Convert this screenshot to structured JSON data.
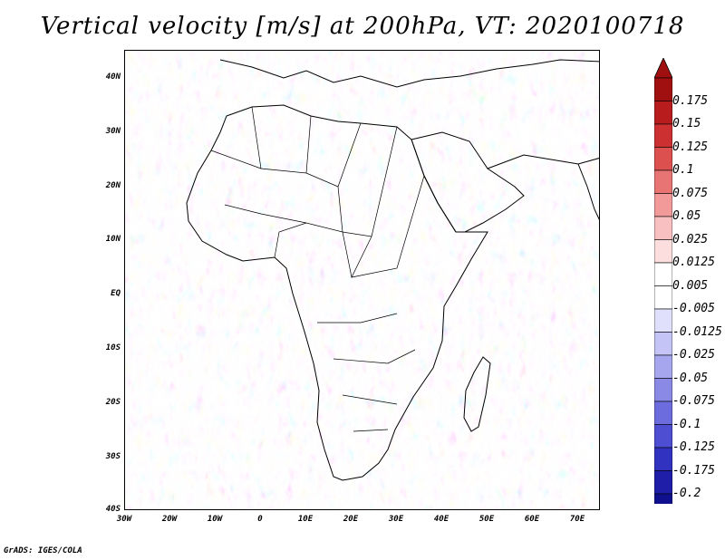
{
  "title": "Vertical velocity [m/s] at 200hPa, VT: 2020100718",
  "footer": "GrADS: IGES/COLA",
  "map": {
    "lat_labels": [
      "40N",
      "30N",
      "20N",
      "10N",
      "EQ",
      "10S",
      "20S",
      "30S",
      "40S"
    ],
    "lon_labels": [
      "30W",
      "20W",
      "10W",
      "0",
      "10E",
      "20E",
      "30E",
      "40E",
      "50E",
      "60E",
      "70E"
    ],
    "lon_range": [
      -30,
      75
    ],
    "lat_range": [
      -40,
      45
    ],
    "land_outline_color": "#000000"
  },
  "colorbar": {
    "labels": [
      "0.175",
      "0.15",
      "0.125",
      "0.1",
      "0.075",
      "0.05",
      "0.025",
      "0.0125",
      "0.005",
      "-0.005",
      "-0.0125",
      "-0.025",
      "-0.05",
      "-0.075",
      "-0.1",
      "-0.125",
      "-0.175",
      "-0.2"
    ],
    "colors": [
      "#a01010",
      "#b81c1c",
      "#cc3030",
      "#dc5050",
      "#e87474",
      "#f29a9a",
      "#f8c0c0",
      "#fcdede",
      "#ffffff",
      "#ffffff",
      "#e0e0fc",
      "#c4c4f6",
      "#a6a6ee",
      "#8a8ae6",
      "#6c6cde",
      "#4e4ed2",
      "#3232c0",
      "#1e1ea8",
      "#10108e"
    ],
    "top_arrow_color": "#a01010",
    "bottom_arrow_color": "#10108e"
  }
}
